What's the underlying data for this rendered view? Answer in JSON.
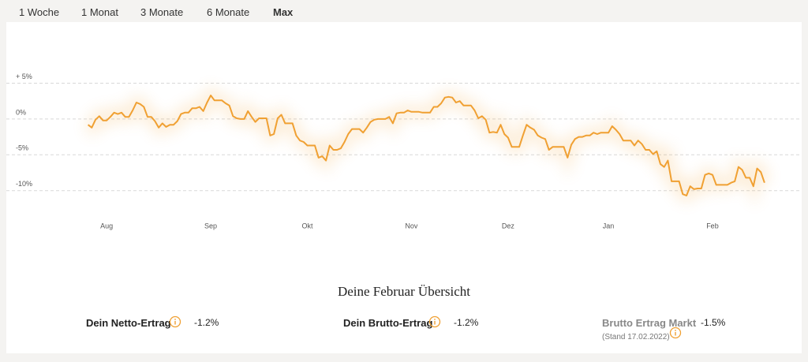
{
  "tabs": [
    "1 Woche",
    "1 Monat",
    "3 Monate",
    "6 Monate",
    "Max"
  ],
  "active_tab": 4,
  "chart_data": {
    "type": "line",
    "series": [
      {
        "color": "#f0a032",
        "values": [
          -0.8,
          -1.2,
          -0.1,
          0.4,
          -0.2,
          -0.2,
          0.3,
          0.9,
          0.7,
          0.9,
          0.3,
          0.3,
          1.2,
          2.3,
          2.1,
          1.7,
          0.3,
          0.3,
          -0.3,
          -1.2,
          -0.6,
          -1.1,
          -0.8,
          -0.8,
          -0.3,
          0.7,
          0.9,
          0.9,
          1.5,
          1.5,
          1.7,
          1.1,
          2.3,
          3.3,
          2.6,
          2.6,
          2.6,
          2.2,
          1.9,
          0.4,
          0.1,
          0,
          0,
          1.1,
          0.3,
          -0.4,
          0.1,
          0.1,
          0.1,
          -2.3,
          -2.1,
          0.1,
          0.6,
          -0.6,
          -0.6,
          -0.6,
          -2.3,
          -3.0,
          -3.2,
          -3.7,
          -3.7,
          -3.7,
          -5.4,
          -5.2,
          -5.8,
          -3.7,
          -4.3,
          -4.3,
          -4.1,
          -3.2,
          -2.1,
          -1.4,
          -1.4,
          -1.4,
          -1.9,
          -1.2,
          -0.4,
          -0.1,
          0,
          0,
          0,
          0.3,
          -0.6,
          0.8,
          0.9,
          0.9,
          1.2,
          1.0,
          1.0,
          1.0,
          0.9,
          0.9,
          0.9,
          1.7,
          1.7,
          2.2,
          3.0,
          3.1,
          3.0,
          2.3,
          2.5,
          1.9,
          1.9,
          1.9,
          1.2,
          0.1,
          0.4,
          -0.1,
          -1.9,
          -1.8,
          -1.9,
          -0.8,
          -2.1,
          -2.6,
          -3.9,
          -3.9,
          -3.9,
          -2.3,
          -0.8,
          -1.2,
          -1.5,
          -2.3,
          -2.6,
          -2.8,
          -4.3,
          -3.9,
          -3.9,
          -3.9,
          -3.9,
          -5.4,
          -3.6,
          -2.8,
          -2.5,
          -2.5,
          -2.3,
          -2.3,
          -1.9,
          -2.1,
          -1.9,
          -1.9,
          -1.9,
          -1.0,
          -1.5,
          -2.1,
          -3.0,
          -3.0,
          -3.0,
          -3.7,
          -3.0,
          -3.5,
          -4.3,
          -4.3,
          -4.9,
          -4.5,
          -6.3,
          -6.7,
          -5.8,
          -8.7,
          -8.7,
          -8.7,
          -10.5,
          -10.7,
          -9.4,
          -9.8,
          -9.7,
          -9.7,
          -7.8,
          -7.6,
          -7.8,
          -9.2,
          -9.2,
          -9.2,
          -9.2,
          -8.9,
          -8.7,
          -6.7,
          -7.1,
          -8.2,
          -8.2,
          -9.4,
          -6.9,
          -7.4,
          -8.9
        ]
      }
    ],
    "xlim": [
      -22,
      192
    ],
    "xticks": [
      {
        "value": 5,
        "label": "Aug"
      },
      {
        "value": 33,
        "label": "Sep"
      },
      {
        "value": 59,
        "label": "Okt"
      },
      {
        "value": 87,
        "label": "Nov"
      },
      {
        "value": 113,
        "label": "Dez"
      },
      {
        "value": 140,
        "label": "Jan"
      },
      {
        "value": 168,
        "label": "Feb"
      }
    ],
    "ylim": [
      -14,
      12
    ],
    "yticks": [
      {
        "value": 5,
        "label": "+ 5%"
      },
      {
        "value": 0,
        "label": "0%"
      },
      {
        "value": -5,
        "label": "-5%"
      },
      {
        "value": -10,
        "label": "-10%"
      }
    ],
    "grid": true
  },
  "summary": {
    "title": "Deine Februar Übersicht",
    "items": [
      {
        "label": "Dein Netto-Ertrag",
        "value": "-1.2%"
      },
      {
        "label": "Dein Brutto-Ertrag",
        "value": "-1.2%"
      },
      {
        "label": "Brutto Ertrag Markt",
        "value": "-1.5%",
        "note": "(Stand 17.02.2022)"
      }
    ]
  }
}
